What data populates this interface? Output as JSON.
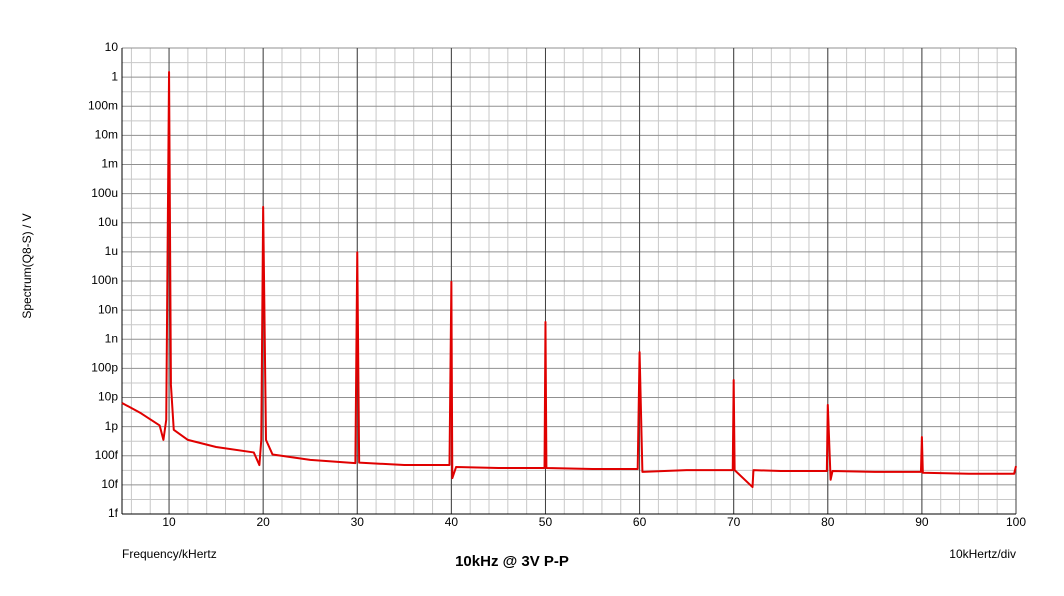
{
  "chart_data": {
    "type": "line",
    "subtitle": "10kHz @ 3V P-P",
    "y_label": "Spectrum(Q8-S) / V",
    "x_label": "Frequency/kHertz",
    "annotation": "10kHertz/div",
    "color": "#e00000",
    "ylog": true,
    "grid": true,
    "xlim": [
      5,
      100
    ],
    "xticks": [
      10,
      20,
      30,
      40,
      50,
      60,
      70,
      80,
      90,
      100
    ],
    "ylim": [
      1e-15,
      10
    ],
    "yticks": [
      {
        "value": 1e-15,
        "label": "1f"
      },
      {
        "value": 1e-14,
        "label": "10f"
      },
      {
        "value": 1e-13,
        "label": "100f"
      },
      {
        "value": 1e-12,
        "label": "1p"
      },
      {
        "value": 1e-11,
        "label": "10p"
      },
      {
        "value": 1e-10,
        "label": "100p"
      },
      {
        "value": 1e-09,
        "label": "1n"
      },
      {
        "value": 1e-08,
        "label": "10n"
      },
      {
        "value": 1e-07,
        "label": "100n"
      },
      {
        "value": 1e-06,
        "label": "1u"
      },
      {
        "value": 1e-05,
        "label": "10u"
      },
      {
        "value": 0.0001,
        "label": "100u"
      },
      {
        "value": 0.001,
        "label": "1m"
      },
      {
        "value": 0.01,
        "label": "10m"
      },
      {
        "value": 0.1,
        "label": "100m"
      },
      1,
      10
    ],
    "x": [
      5,
      7,
      9,
      9.4,
      9.7,
      10,
      10.2,
      10.5,
      12,
      15,
      19,
      19.6,
      19.8,
      20,
      20.3,
      21,
      25,
      29.8,
      30,
      30.2,
      35,
      39.8,
      40,
      40.1,
      40.5,
      45,
      49.9,
      50,
      50.1,
      55,
      59.8,
      60,
      60.3,
      65,
      69.9,
      70,
      70.1,
      72,
      72.1,
      75,
      79.9,
      80,
      80.3,
      80.5,
      85,
      89.9,
      90,
      90.1,
      95,
      99.8,
      100
    ],
    "values": [
      6.5e-12,
      2.9e-12,
      1.1e-12,
      3.5e-13,
      1.7e-12,
      1.5,
      2.7e-11,
      7.8e-13,
      3.5e-13,
      2e-13,
      1.3e-13,
      4.8e-14,
      3.5e-13,
      3.5e-05,
      3.5e-13,
      1.1e-13,
      7.2e-14,
      5.6e-14,
      9.6e-07,
      5.8e-14,
      4.8e-14,
      4.8e-14,
      9.3e-08,
      1.7e-14,
      4.1e-14,
      3.8e-14,
      3.8e-14,
      3.9e-09,
      3.8e-14,
      3.5e-14,
      3.5e-14,
      3.6e-10,
      2.8e-14,
      3.2e-14,
      3.2e-14,
      4e-11,
      3.2e-14,
      8.4e-15,
      3.2e-14,
      3e-14,
      3e-14,
      5.6e-12,
      1.5e-14,
      3e-14,
      2.8e-14,
      2.8e-14,
      4.4e-13,
      2.6e-14,
      2.4e-14,
      2.4e-14,
      4.4e-14
    ]
  }
}
